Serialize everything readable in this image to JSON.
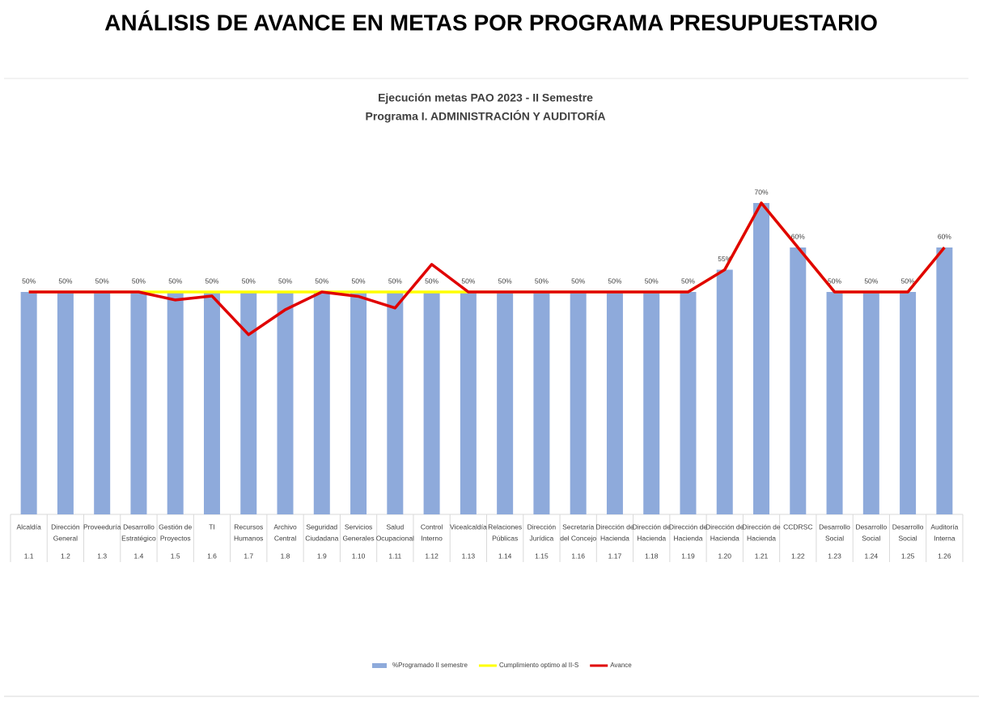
{
  "page_title": "ANÁLISIS DE AVANCE EN METAS POR PROGRAMA PRESUPUESTARIO",
  "chart_data": {
    "type": "bar",
    "title": [
      "Ejecución metas PAO 2023 - II Semestre",
      "Programa I. ADMINISTRACIÓN Y AUDITORÍA"
    ],
    "categories": [
      [
        "Alcaldía"
      ],
      [
        "Dirección",
        "General"
      ],
      [
        "Proveeduría"
      ],
      [
        "Desarrollo",
        "Estratégico"
      ],
      [
        "Gestión de",
        "Proyectos"
      ],
      [
        "TI"
      ],
      [
        "Recursos",
        "Humanos"
      ],
      [
        "Archivo",
        "Central"
      ],
      [
        "Seguridad",
        "Ciudadana"
      ],
      [
        "Servicios",
        "Generales"
      ],
      [
        "Salud",
        "Ocupacional"
      ],
      [
        "Control",
        "Interno"
      ],
      [
        "Vicealcaldía"
      ],
      [
        "Relaciones",
        "Públicas"
      ],
      [
        "Dirección",
        "Jurídica"
      ],
      [
        "Secretaría",
        "del Concejo"
      ],
      [
        "Dirección de",
        "Hacienda"
      ],
      [
        "Dirección de",
        "Hacienda"
      ],
      [
        "Dirección de",
        "Hacienda"
      ],
      [
        "Dirección de",
        "Hacienda"
      ],
      [
        "Dirección de",
        "Hacienda"
      ],
      [
        "CCDRSC"
      ],
      [
        "Desarrollo",
        "Social"
      ],
      [
        "Desarrollo",
        "Social"
      ],
      [
        "Desarrollo",
        "Social"
      ],
      [
        "Auditoría",
        "Interna"
      ]
    ],
    "codes": [
      "1.1",
      "1.2",
      "1.3",
      "1.4",
      "1.5",
      "1.6",
      "1.7",
      "1.8",
      "1.9",
      "1.10",
      "1.11",
      "1.12",
      "1.13",
      "1.14",
      "1.15",
      "1.16",
      "1.17",
      "1.18",
      "1.19",
      "1.20",
      "1.21",
      "1.22",
      "1.23",
      "1.24",
      "1.25",
      "1.26"
    ],
    "series": [
      {
        "name": "%Programado II semestre",
        "type": "bar",
        "color": "#8eaadb",
        "values": [
          50,
          50,
          50,
          50,
          50,
          50,
          50,
          50,
          50,
          50,
          50,
          50,
          50,
          50,
          50,
          50,
          50,
          50,
          50,
          55,
          70,
          60,
          50,
          50,
          50,
          60
        ],
        "value_labels": [
          "50%",
          "50%",
          "50%",
          "50%",
          "50%",
          "50%",
          "50%",
          "50%",
          "50%",
          "50%",
          "50%",
          "50%",
          "50%",
          "50%",
          "50%",
          "50%",
          "50%",
          "50%",
          "50%",
          "55%",
          "70%",
          "60%",
          "50%",
          "50%",
          "50%",
          "60%"
        ]
      },
      {
        "name": "Cumplimiento optimo al II-S",
        "type": "line",
        "color": "#ffff00",
        "values": [
          50,
          50,
          50,
          50,
          50,
          50,
          50,
          50,
          50,
          50,
          50,
          50,
          50,
          50,
          50,
          50,
          50,
          50,
          50,
          55,
          70,
          60,
          50,
          50,
          50,
          60
        ]
      },
      {
        "name": "Avance",
        "type": "line",
        "color": "#e00000",
        "values": [
          50,
          50,
          50,
          50,
          48.2,
          49.1,
          40.4,
          46,
          50,
          49,
          46.4,
          56.2,
          50,
          50,
          50,
          50,
          50,
          50,
          50,
          55,
          70,
          60,
          50,
          50,
          50,
          60
        ]
      }
    ],
    "ylim": [
      0,
      80
    ]
  }
}
